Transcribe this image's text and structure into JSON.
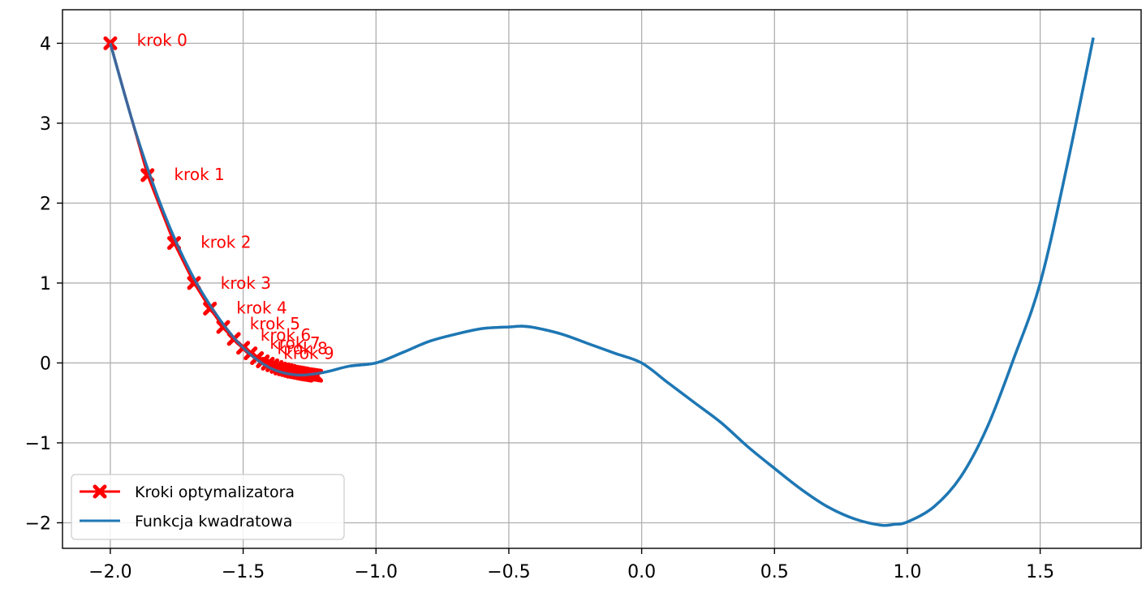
{
  "chart_data": {
    "type": "line",
    "title": "",
    "xlabel": "",
    "ylabel": "",
    "xlim": [
      -2.18,
      1.88
    ],
    "ylim": [
      -2.32,
      4.42
    ],
    "grid": true,
    "legend_position": "lower-left",
    "x_ticks": [
      -2.0,
      -1.5,
      -1.0,
      -0.5,
      0.0,
      0.5,
      1.0,
      1.5
    ],
    "x_tick_labels": [
      "−2.0",
      "−1.5",
      "−1.0",
      "−0.5",
      "0.0",
      "0.5",
      "1.0",
      "1.5"
    ],
    "y_ticks": [
      -2,
      -1,
      0,
      1,
      2,
      3,
      4
    ],
    "y_tick_labels": [
      "−2",
      "−1",
      "0",
      "1",
      "2",
      "3",
      "4"
    ],
    "series": [
      {
        "name": "Kroki optymalizatora",
        "kind": "steps",
        "color": "#ff0000",
        "marker": "X",
        "x": [
          -2.0,
          -1.86,
          -1.76,
          -1.685,
          -1.625,
          -1.575,
          -1.535,
          -1.5,
          -1.472,
          -1.448,
          -1.426,
          -1.407,
          -1.39,
          -1.374,
          -1.36,
          -1.347,
          -1.335,
          -1.324,
          -1.314,
          -1.304,
          -1.295,
          -1.287,
          -1.279,
          -1.272,
          -1.265,
          -1.258,
          -1.252,
          -1.246,
          -1.24,
          -1.235,
          -1.23,
          -1.225
        ],
        "y": [
          4.0,
          2.35,
          1.5,
          1.0,
          0.68,
          0.45,
          0.3,
          0.19,
          0.12,
          0.06,
          0.02,
          -0.01,
          -0.03,
          -0.05,
          -0.07,
          -0.08,
          -0.09,
          -0.1,
          -0.11,
          -0.115,
          -0.12,
          -0.125,
          -0.13,
          -0.135,
          -0.14,
          -0.143,
          -0.146,
          -0.149,
          -0.152,
          -0.155,
          -0.157,
          -0.16
        ]
      },
      {
        "name": "Funkcja kwadratowa",
        "kind": "curve",
        "color": "#1f77b4",
        "x": [
          -2.0,
          -1.9,
          -1.8,
          -1.7,
          -1.6,
          -1.5,
          -1.4,
          -1.3,
          -1.2,
          -1.1,
          -1.0,
          -0.9,
          -0.8,
          -0.7,
          -0.6,
          -0.5,
          -0.45,
          -0.4,
          -0.3,
          -0.2,
          -0.1,
          0.0,
          0.1,
          0.2,
          0.3,
          0.4,
          0.5,
          0.6,
          0.7,
          0.8,
          0.9,
          0.95,
          1.0,
          1.1,
          1.2,
          1.3,
          1.4,
          1.5,
          1.6,
          1.7
        ],
        "y": [
          4.0,
          2.84,
          1.89,
          1.15,
          0.6,
          0.19,
          -0.06,
          -0.15,
          -0.12,
          -0.04,
          0.0,
          0.13,
          0.27,
          0.36,
          0.43,
          0.45,
          0.46,
          0.44,
          0.36,
          0.24,
          0.12,
          0.0,
          -0.25,
          -0.5,
          -0.75,
          -1.05,
          -1.32,
          -1.58,
          -1.8,
          -1.95,
          -2.03,
          -2.02,
          -1.99,
          -1.8,
          -1.43,
          -0.81,
          0.05,
          1.0,
          2.45,
          4.07
        ]
      }
    ],
    "annotations": [
      {
        "text": "krok 0",
        "x": -1.9,
        "y": 4.04
      },
      {
        "text": "krok 1",
        "x": -1.76,
        "y": 2.36
      },
      {
        "text": "krok 2",
        "x": -1.66,
        "y": 1.51
      },
      {
        "text": "krok 3",
        "x": -1.585,
        "y": 1.0
      },
      {
        "text": "krok 4",
        "x": -1.525,
        "y": 0.69
      },
      {
        "text": "krok 5",
        "x": -1.475,
        "y": 0.49
      },
      {
        "text": "krok 6",
        "x": -1.435,
        "y": 0.35
      },
      {
        "text": "krok 7",
        "x": -1.4,
        "y": 0.25
      },
      {
        "text": "krok 8",
        "x": -1.372,
        "y": 0.18
      },
      {
        "text": "krok 9",
        "x": -1.348,
        "y": 0.12
      }
    ]
  },
  "legend": {
    "items": [
      {
        "label": "Kroki optymalizatora",
        "color": "#ff0000",
        "marker": "X"
      },
      {
        "label": "Funkcja kwadratowa",
        "color": "#1f77b4",
        "marker": ""
      }
    ]
  }
}
